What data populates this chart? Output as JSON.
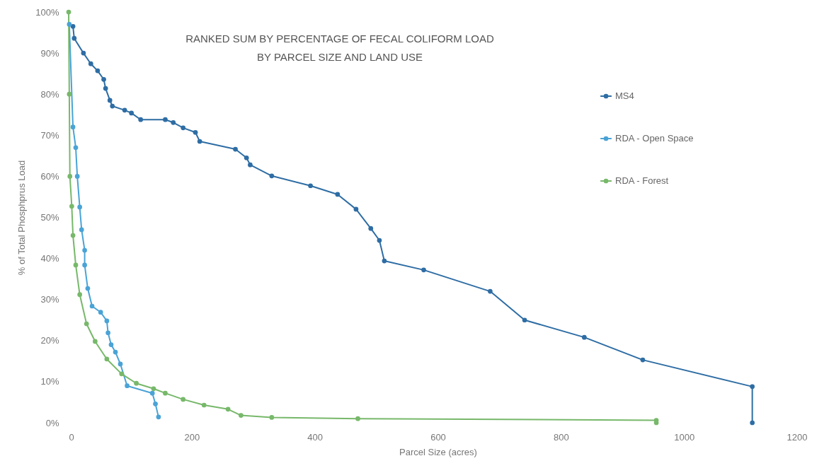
{
  "chart_data": {
    "type": "line",
    "title": "RANKED SUM BY PERCENTAGE OF FECAL COLIFORM LOAD BY PARCEL SIZE AND LAND USE",
    "xlabel": "Parcel Size (acres)",
    "ylabel": "% of Total Phosphprus Load",
    "xlim": [
      0,
      1200
    ],
    "xticks": [
      0,
      200,
      400,
      600,
      800,
      1000,
      1200
    ],
    "ylim": [
      0,
      100
    ],
    "yticks": [
      {
        "value": 0,
        "label": "0%"
      },
      {
        "value": 10,
        "label": "10%"
      },
      {
        "value": 20,
        "label": "20%"
      },
      {
        "value": 30,
        "label": "30%"
      },
      {
        "value": 40,
        "label": "40%"
      },
      {
        "value": 50,
        "label": "50%"
      },
      {
        "value": 60,
        "label": "60%"
      },
      {
        "value": 70,
        "label": "70%"
      },
      {
        "value": 80,
        "label": "80%"
      },
      {
        "value": 90,
        "label": "90%"
      },
      {
        "value": 100,
        "label": "100%"
      }
    ],
    "grid": false,
    "legend": "right",
    "marker": "circle",
    "series": [
      {
        "name": "MS4",
        "color": "#2e6da4",
        "x": [
          7,
          9,
          24,
          36,
          47,
          57,
          60,
          67,
          71,
          91,
          102,
          117,
          157,
          170,
          186,
          206,
          213,
          271,
          289,
          295,
          330,
          393,
          437,
          467,
          491,
          505,
          513,
          577,
          685,
          741,
          838,
          933,
          1111,
          1111
        ],
        "values": [
          96.5,
          93.6,
          90,
          87.4,
          85.7,
          83.6,
          81.4,
          78.5,
          77.1,
          76.1,
          75.4,
          73.8,
          73.8,
          73.1,
          71.8,
          70.7,
          68.5,
          66.6,
          64.5,
          62.8,
          60.1,
          57.7,
          55.6,
          52,
          47.3,
          44.4,
          39.4,
          37.2,
          32,
          25,
          20.8,
          15.3,
          8.8,
          0
        ]
      },
      {
        "name": "RDA - Open Space",
        "color": "#4aa3d6",
        "x": [
          1,
          7,
          11.5,
          14,
          18,
          21,
          26,
          26,
          31,
          38,
          52,
          62,
          64,
          69,
          76,
          84,
          95,
          136,
          141,
          146
        ],
        "values": [
          97,
          72,
          67,
          60,
          52.5,
          47,
          42,
          38.4,
          32.7,
          28.4,
          26.9,
          24.8,
          21.9,
          19,
          17.2,
          14.3,
          9,
          7.2,
          4.6,
          1.4
        ]
      },
      {
        "name": "RDA - Forest",
        "color": "#77b86a",
        "x": [
          0,
          1,
          2,
          5,
          7,
          11.5,
          18,
          29,
          43,
          62,
          86,
          110,
          138,
          157,
          186,
          220,
          259,
          280,
          330,
          470,
          955,
          955
        ],
        "values": [
          100,
          80,
          60,
          52.7,
          45.6,
          38.4,
          31.2,
          24.1,
          19.8,
          15.5,
          11.9,
          9.6,
          8.3,
          7.2,
          5.7,
          4.3,
          3.3,
          1.8,
          1.3,
          1,
          0.6,
          0
        ]
      }
    ]
  }
}
